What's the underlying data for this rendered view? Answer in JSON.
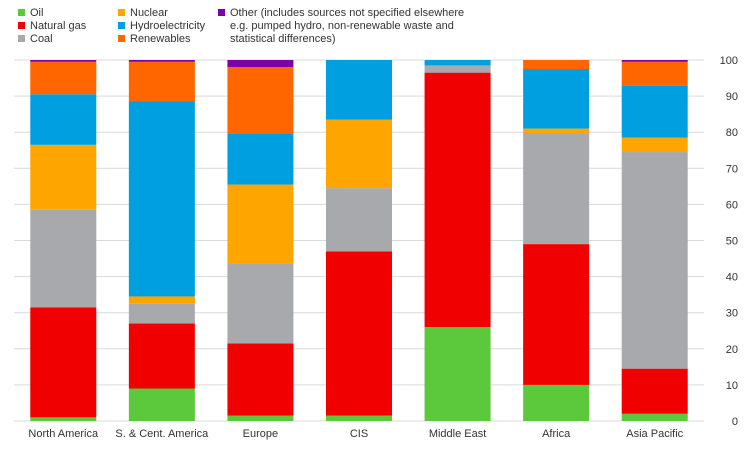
{
  "chart_data": {
    "type": "bar",
    "stacked": true,
    "categories": [
      "North America",
      "S. & Cent. America",
      "Europe",
      "CIS",
      "Middle East",
      "Africa",
      "Asia Pacific"
    ],
    "series": [
      {
        "name": "Oil",
        "color": "#5cc83c",
        "values": [
          1.0,
          9.0,
          1.5,
          1.5,
          26.0,
          10.0,
          2.0
        ]
      },
      {
        "name": "Natural gas",
        "color": "#f00000",
        "values": [
          30.5,
          18.0,
          20.0,
          45.5,
          70.5,
          39.0,
          12.5
        ]
      },
      {
        "name": "Coal",
        "color": "#a7a9ac",
        "values": [
          27.0,
          5.5,
          22.0,
          17.5,
          2.0,
          30.5,
          60.0
        ]
      },
      {
        "name": "Nuclear",
        "color": "#ffa500",
        "values": [
          18.0,
          2.0,
          22.0,
          19.0,
          0.0,
          1.5,
          4.0
        ]
      },
      {
        "name": "Hydroelectricity",
        "color": "#00a0e0",
        "values": [
          14.0,
          54.0,
          14.0,
          16.5,
          1.5,
          16.5,
          14.5
        ]
      },
      {
        "name": "Renewables",
        "color": "#ff6600",
        "values": [
          9.0,
          11.0,
          18.5,
          0.0,
          0.0,
          2.5,
          6.5
        ]
      },
      {
        "name": "Other (includes sources not specified elsewhere e.g. pumped hydro, non-renewable waste and statistical differences)",
        "color": "#7b00a6",
        "values": [
          0.5,
          0.5,
          2.0,
          0.0,
          0.0,
          0.0,
          0.5
        ]
      }
    ],
    "legend": {
      "placement": "top-left",
      "entries": [
        {
          "label": "Oil",
          "color": "#5cc83c"
        },
        {
          "label": "Natural gas",
          "color": "#f00000"
        },
        {
          "label": "Coal",
          "color": "#a7a9ac"
        },
        {
          "label": "Nuclear",
          "color": "#ffa500"
        },
        {
          "label": "Hydroelectricity",
          "color": "#00a0e0"
        },
        {
          "label": "Renewables",
          "color": "#ff6600"
        },
        {
          "label_lines": [
            "Other (includes sources not specified elsewhere",
            "e.g. pumped hydro, non-renewable waste and",
            "statistical differences)"
          ],
          "color": "#7b00a6"
        }
      ]
    },
    "y_ticks": [
      0,
      10,
      20,
      30,
      40,
      50,
      60,
      70,
      80,
      90,
      100
    ],
    "ylim": [
      0,
      100
    ],
    "y_axis_side": "right",
    "grid": true
  }
}
